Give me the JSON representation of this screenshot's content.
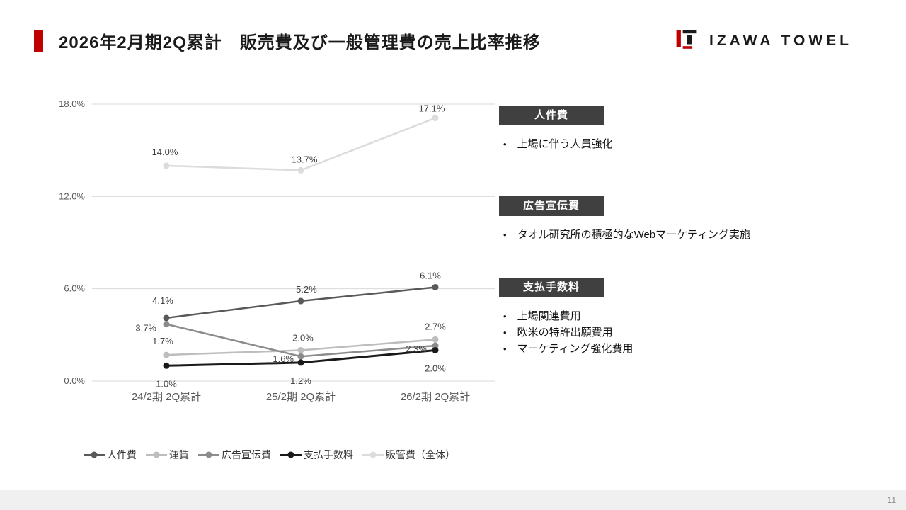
{
  "slide": {
    "title": "2026年2月期2Q累計　販売費及び一般管理費の売上比率推移",
    "logo_text": "IZAWA TOWEL",
    "page_number": "11"
  },
  "chart_data": {
    "type": "line",
    "title": "販売費及び一般管理費の売上比率推移",
    "categories": [
      "24/2期 2Q累計",
      "25/2期 2Q累計",
      "26/2期 2Q累計"
    ],
    "series": [
      {
        "name": "人件費",
        "values": [
          4.1,
          5.2,
          6.1
        ],
        "color": "#595959"
      },
      {
        "name": "運賃",
        "values": [
          1.7,
          2.0,
          2.7
        ],
        "color": "#bdbdbd"
      },
      {
        "name": "広告宣伝費",
        "values": [
          3.7,
          1.6,
          2.3
        ],
        "color": "#8c8c8c"
      },
      {
        "name": "支払手数料",
        "values": [
          1.0,
          1.2,
          2.0
        ],
        "color": "#1a1a1a"
      },
      {
        "name": "販管費（全体）",
        "values": [
          14.0,
          13.7,
          17.1
        ],
        "color": "#dcdcdc"
      }
    ],
    "ylim": [
      0,
      18
    ],
    "yticks": [
      "0.0%",
      "6.0%",
      "12.0%",
      "18.0%"
    ],
    "grid": true,
    "legend_position": "bottom",
    "accent_color": "#c00000"
  },
  "panels": [
    {
      "header": "人件費",
      "bullets": [
        "上場に伴う人員強化"
      ]
    },
    {
      "header": "広告宣伝費",
      "bullets": [
        "タオル研究所の積極的なWebマーケティング実施"
      ]
    },
    {
      "header": "支払手数料",
      "bullets": [
        "上場関連費用",
        "欧米の特許出願費用",
        "マーケティング強化費用"
      ]
    }
  ]
}
